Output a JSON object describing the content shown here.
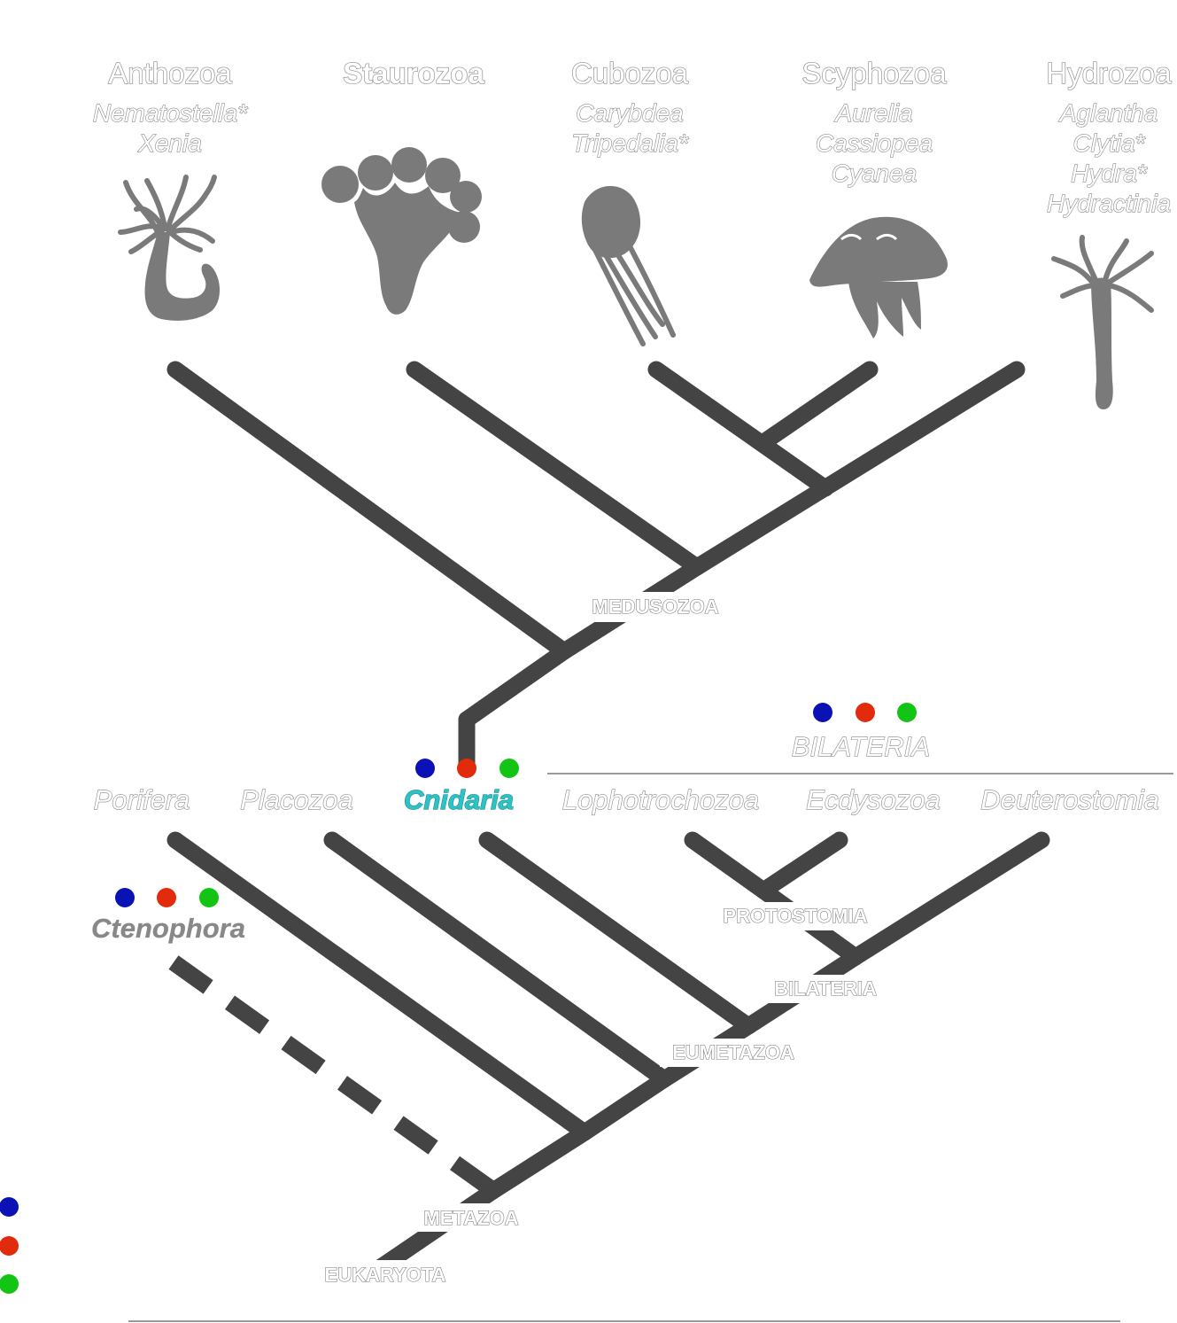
{
  "top_clades": [
    {
      "name": "Anthozoa",
      "genera": [
        "Nematostella*",
        "Xenia"
      ]
    },
    {
      "name": "Staurozoa",
      "genera": []
    },
    {
      "name": "Cubozoa",
      "genera": [
        "Carybdea",
        "Tripedalia*"
      ]
    },
    {
      "name": "Scyphozoa",
      "genera": [
        "Aurelia",
        "Cassiopea",
        "Cyanea"
      ]
    },
    {
      "name": "Hydrozoa",
      "genera": [
        "Aglantha",
        "Clytia*",
        "Hydra*",
        "Hydractinia"
      ]
    }
  ],
  "cnidarian_nodes": {
    "medusozoa": "MEDUSOZOA"
  },
  "bilateria_group_label": "BILATERIA",
  "phyla": {
    "porifera": "Porifera",
    "placozoa": "Placozoa",
    "cnidaria": "Cnidaria",
    "lophotrochozoa": "Lophotrochozoa",
    "ecdysozoa": "Ecdysozoa",
    "deuterostomia": "Deuterostomia",
    "ctenophora": "Ctenophora"
  },
  "nodes": {
    "protostomia": "PROTOSTOMIA",
    "bilateria": "BILATERIA",
    "eumetazoa": "EUMETAZOA",
    "metazoa": "METAZOA",
    "eukaryota": "EUKARYOTA"
  },
  "marker_colors": {
    "blue": "#0a12b5",
    "red": "#e22a0c",
    "green": "#14c414"
  },
  "colors": {
    "branch": "#444444",
    "silhouette": "#7a7a7a",
    "highlight": "#2cc2c6"
  }
}
